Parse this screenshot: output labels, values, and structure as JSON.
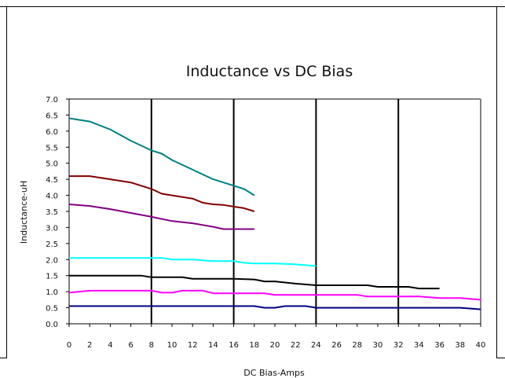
{
  "chart_data": {
    "type": "line",
    "title": "Inductance vs DC Bias",
    "xlabel": "DC Bias-Amps",
    "ylabel": "Inductance-uH",
    "xlim": [
      0,
      40
    ],
    "ylim": [
      0.0,
      7.0
    ],
    "x_ticks": [
      0,
      2,
      4,
      6,
      8,
      10,
      12,
      14,
      16,
      18,
      20,
      22,
      24,
      26,
      28,
      30,
      32,
      34,
      36,
      38,
      40
    ],
    "y_ticks": [
      "0.0",
      "0.5",
      "1.0",
      "1.5",
      "2.0",
      "2.5",
      "3.0",
      "3.5",
      "4.0",
      "4.5",
      "5.0",
      "5.5",
      "6.0",
      "6.5",
      "7.0"
    ],
    "vertical_gridlines_at": [
      8,
      16,
      24,
      32
    ],
    "legend": "none",
    "series": [
      {
        "color": "#008080",
        "x": [
          0,
          2,
          4,
          6,
          8,
          9,
          10,
          12,
          14,
          16,
          17,
          18
        ],
        "y": [
          6.4,
          6.3,
          6.05,
          5.7,
          5.4,
          5.3,
          5.1,
          4.8,
          4.5,
          4.3,
          4.2,
          4.0
        ]
      },
      {
        "color": "#800000",
        "x": [
          0,
          2,
          4,
          6,
          7,
          8,
          9,
          10,
          12,
          13,
          14,
          15,
          16,
          17,
          18
        ],
        "y": [
          4.6,
          4.6,
          4.5,
          4.4,
          4.3,
          4.2,
          4.05,
          4.0,
          3.9,
          3.77,
          3.72,
          3.7,
          3.65,
          3.6,
          3.5
        ]
      },
      {
        "color": "#800080",
        "x": [
          0,
          2,
          4,
          6,
          8,
          10,
          12,
          14,
          15,
          16,
          18
        ],
        "y": [
          3.72,
          3.67,
          3.57,
          3.45,
          3.33,
          3.2,
          3.13,
          3.02,
          2.95,
          2.95,
          2.95
        ]
      },
      {
        "color": "#00ffff",
        "x": [
          0,
          2,
          4,
          6,
          8,
          9,
          10,
          12,
          14,
          16,
          17,
          18,
          20,
          22,
          24
        ],
        "y": [
          2.05,
          2.05,
          2.05,
          2.05,
          2.05,
          2.05,
          2.0,
          2.0,
          1.95,
          1.95,
          1.9,
          1.88,
          1.88,
          1.85,
          1.8
        ]
      },
      {
        "color": "#000000",
        "x": [
          0,
          2,
          4,
          6,
          7,
          8,
          10,
          11,
          12,
          14,
          16,
          18,
          19,
          20,
          22,
          24,
          26,
          28,
          29,
          30,
          32,
          33,
          34,
          36
        ],
        "y": [
          1.5,
          1.5,
          1.5,
          1.5,
          1.5,
          1.45,
          1.45,
          1.45,
          1.4,
          1.4,
          1.4,
          1.38,
          1.32,
          1.32,
          1.25,
          1.2,
          1.2,
          1.2,
          1.2,
          1.15,
          1.15,
          1.15,
          1.1,
          1.1
        ]
      },
      {
        "color": "#ff00ff",
        "x": [
          0,
          1,
          2,
          4,
          6,
          8,
          9,
          10,
          11,
          12,
          13,
          14,
          16,
          18,
          19,
          20,
          22,
          24,
          26,
          28,
          29,
          30,
          32,
          34,
          36,
          38,
          40
        ],
        "y": [
          0.97,
          1.0,
          1.03,
          1.03,
          1.03,
          1.03,
          0.97,
          0.97,
          1.03,
          1.03,
          1.03,
          0.95,
          0.95,
          0.95,
          0.95,
          0.9,
          0.9,
          0.9,
          0.9,
          0.9,
          0.85,
          0.85,
          0.85,
          0.85,
          0.8,
          0.8,
          0.75
        ]
      },
      {
        "color": "#000080",
        "x": [
          0,
          2,
          4,
          6,
          8,
          10,
          12,
          14,
          16,
          18,
          19,
          20,
          21,
          22,
          23,
          24,
          26,
          28,
          30,
          32,
          34,
          36,
          38,
          40
        ],
        "y": [
          0.55,
          0.55,
          0.55,
          0.55,
          0.55,
          0.55,
          0.55,
          0.55,
          0.55,
          0.55,
          0.5,
          0.5,
          0.55,
          0.55,
          0.55,
          0.5,
          0.5,
          0.5,
          0.5,
          0.5,
          0.5,
          0.5,
          0.5,
          0.45
        ]
      }
    ]
  }
}
